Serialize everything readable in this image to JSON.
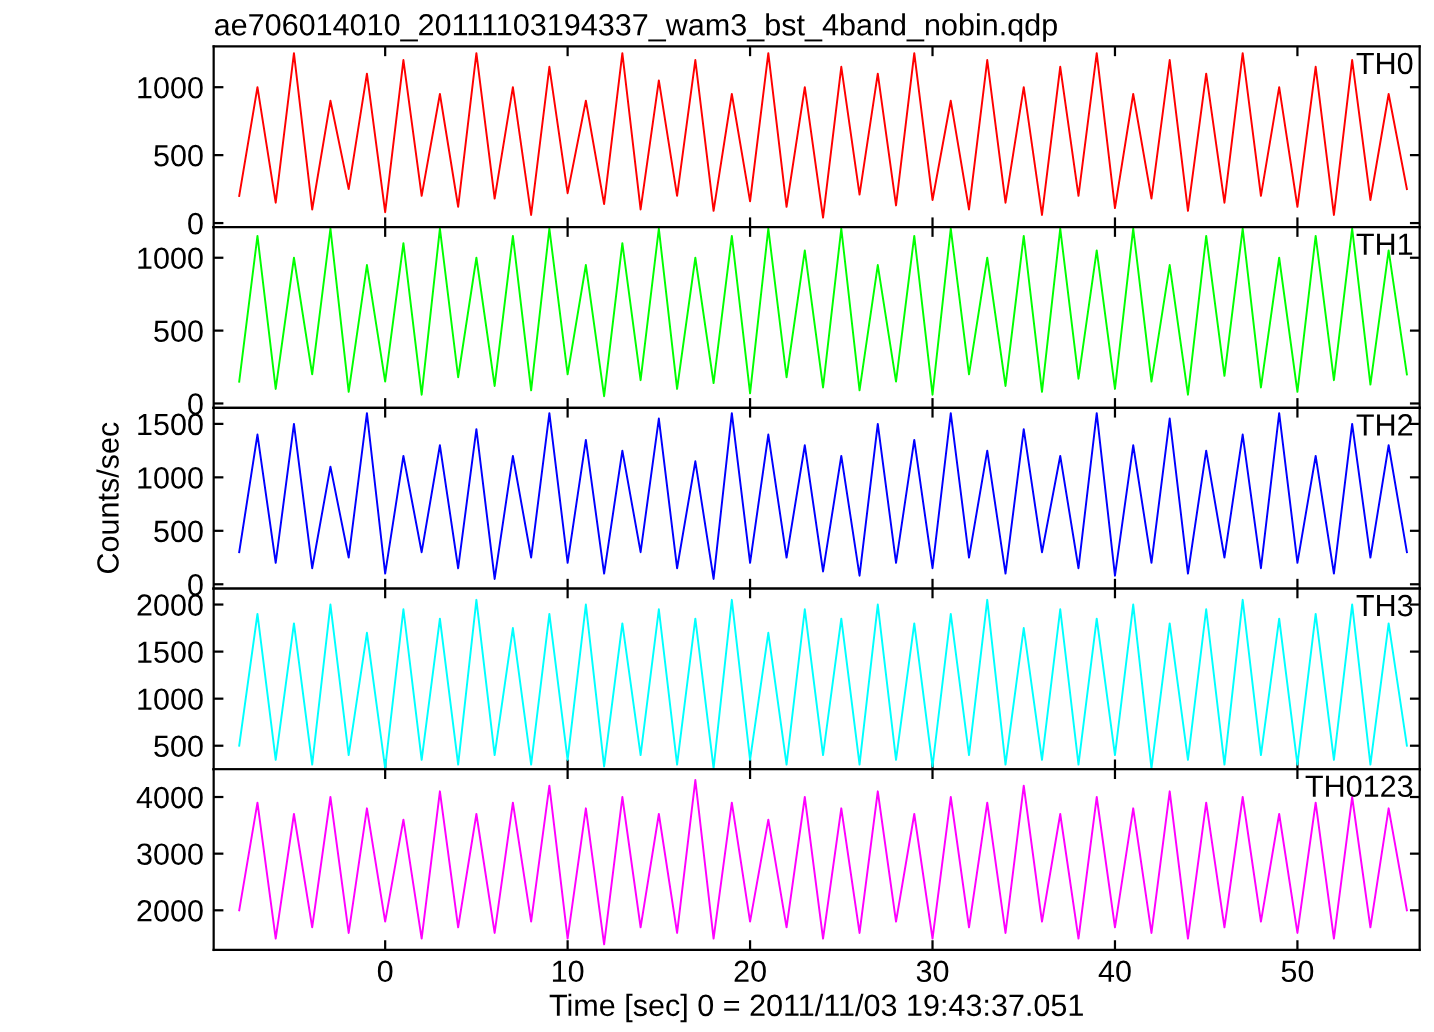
{
  "chart_data": [
    {
      "type": "line",
      "title": "ae706014010_20111103194337_wam3_bst_4band_nobin.qdp",
      "tick_labels": "y",
      "grid": false,
      "xlim": [
        -9.4,
        56.7
      ],
      "xticks": [
        0,
        10,
        20,
        30,
        40,
        50
      ],
      "ylim": [
        -30,
        1300
      ],
      "yticks": [
        0,
        500,
        1000
      ],
      "x": [
        -8,
        -7,
        -6,
        -5,
        -4,
        -3,
        -2,
        -1,
        0,
        1,
        2,
        3,
        4,
        5,
        6,
        7,
        8,
        9,
        10,
        11,
        12,
        13,
        14,
        15,
        16,
        17,
        18,
        19,
        20,
        21,
        22,
        23,
        24,
        25,
        26,
        27,
        28,
        29,
        30,
        31,
        32,
        33,
        34,
        35,
        36,
        37,
        38,
        39,
        40,
        41,
        42,
        43,
        44,
        45,
        46,
        47,
        48,
        49,
        50,
        51,
        52,
        53,
        54,
        55,
        56
      ],
      "series": [
        {
          "name": "TH0",
          "color": "#ff0000",
          "values": [
            200,
            1000,
            150,
            1250,
            100,
            900,
            250,
            1100,
            80,
            1200,
            200,
            950,
            120,
            1250,
            180,
            1000,
            60,
            1150,
            220,
            900,
            140,
            1250,
            100,
            1050,
            200,
            1200,
            90,
            950,
            160,
            1250,
            120,
            1000,
            40,
            1150,
            210,
            1100,
            130,
            1250,
            170,
            900,
            100,
            1200,
            150,
            1000,
            60,
            1150,
            200,
            1250,
            110,
            950,
            180,
            1200,
            90,
            1100,
            150,
            1250,
            200,
            1000,
            120,
            1150,
            60,
            1200,
            170,
            950,
            250
          ]
        }
      ]
    },
    {
      "type": "line",
      "tick_labels": "y",
      "grid": false,
      "xlim": [
        -9.4,
        56.7
      ],
      "xticks": [
        0,
        10,
        20,
        30,
        40,
        50
      ],
      "ylim": [
        -30,
        1210
      ],
      "yticks": [
        0,
        500,
        1000
      ],
      "x": [
        -8,
        -7,
        -6,
        -5,
        -4,
        -3,
        -2,
        -1,
        0,
        1,
        2,
        3,
        4,
        5,
        6,
        7,
        8,
        9,
        10,
        11,
        12,
        13,
        14,
        15,
        16,
        17,
        18,
        19,
        20,
        21,
        22,
        23,
        24,
        25,
        26,
        27,
        28,
        29,
        30,
        31,
        32,
        33,
        34,
        35,
        36,
        37,
        38,
        39,
        40,
        41,
        42,
        43,
        44,
        45,
        46,
        47,
        48,
        49,
        50,
        51,
        52,
        53,
        54,
        55,
        56
      ],
      "series": [
        {
          "name": "TH1",
          "color": "#00ff00",
          "values": [
            150,
            1150,
            100,
            1000,
            200,
            1200,
            80,
            950,
            150,
            1100,
            60,
            1200,
            180,
            1000,
            120,
            1150,
            90,
            1200,
            200,
            950,
            50,
            1100,
            160,
            1200,
            100,
            1000,
            140,
            1150,
            70,
            1200,
            180,
            1050,
            110,
            1200,
            90,
            950,
            150,
            1150,
            60,
            1200,
            200,
            1000,
            120,
            1150,
            80,
            1200,
            170,
            1050,
            100,
            1200,
            150,
            950,
            60,
            1150,
            190,
            1200,
            110,
            1000,
            80,
            1150,
            160,
            1200,
            130,
            1050,
            200
          ]
        }
      ]
    },
    {
      "type": "line",
      "ylabel": "Counts/sec",
      "tick_labels": "y",
      "grid": false,
      "xlim": [
        -9.4,
        56.7
      ],
      "xticks": [
        0,
        10,
        20,
        30,
        40,
        50
      ],
      "ylim": [
        -40,
        1650
      ],
      "yticks": [
        0,
        500,
        1000,
        1500
      ],
      "x": [
        -8,
        -7,
        -6,
        -5,
        -4,
        -3,
        -2,
        -1,
        0,
        1,
        2,
        3,
        4,
        5,
        6,
        7,
        8,
        9,
        10,
        11,
        12,
        13,
        14,
        15,
        16,
        17,
        18,
        19,
        20,
        21,
        22,
        23,
        24,
        25,
        26,
        27,
        28,
        29,
        30,
        31,
        32,
        33,
        34,
        35,
        36,
        37,
        38,
        39,
        40,
        41,
        42,
        43,
        44,
        45,
        46,
        47,
        48,
        49,
        50,
        51,
        52,
        53,
        54,
        55,
        56
      ],
      "series": [
        {
          "name": "TH2",
          "color": "#0000ff",
          "values": [
            300,
            1400,
            200,
            1500,
            150,
            1100,
            250,
            1600,
            100,
            1200,
            300,
            1300,
            150,
            1450,
            50,
            1200,
            250,
            1600,
            200,
            1350,
            100,
            1250,
            300,
            1550,
            150,
            1150,
            50,
            1600,
            200,
            1400,
            250,
            1300,
            120,
            1200,
            80,
            1500,
            200,
            1350,
            150,
            1600,
            250,
            1250,
            100,
            1450,
            300,
            1200,
            150,
            1600,
            80,
            1300,
            200,
            1550,
            100,
            1250,
            250,
            1400,
            150,
            1600,
            200,
            1200,
            100,
            1500,
            250,
            1300,
            300
          ]
        }
      ]
    },
    {
      "type": "line",
      "tick_labels": "y",
      "grid": false,
      "xlim": [
        -9.4,
        56.7
      ],
      "xticks": [
        0,
        10,
        20,
        30,
        40,
        50
      ],
      "ylim": [
        250,
        2170
      ],
      "yticks": [
        500,
        1000,
        1500,
        2000
      ],
      "x": [
        -8,
        -7,
        -6,
        -5,
        -4,
        -3,
        -2,
        -1,
        0,
        1,
        2,
        3,
        4,
        5,
        6,
        7,
        8,
        9,
        10,
        11,
        12,
        13,
        14,
        15,
        16,
        17,
        18,
        19,
        20,
        21,
        22,
        23,
        24,
        25,
        26,
        27,
        28,
        29,
        30,
        31,
        32,
        33,
        34,
        35,
        36,
        37,
        38,
        39,
        40,
        41,
        42,
        43,
        44,
        45,
        46,
        47,
        48,
        49,
        50,
        51,
        52,
        53,
        54,
        55,
        56
      ],
      "series": [
        {
          "name": "TH3",
          "color": "#00ffff",
          "values": [
            500,
            1900,
            350,
            1800,
            300,
            2000,
            400,
            1700,
            260,
            1950,
            350,
            1850,
            300,
            2050,
            400,
            1750,
            300,
            1900,
            350,
            2000,
            280,
            1800,
            400,
            1950,
            300,
            1850,
            260,
            2050,
            350,
            1700,
            300,
            1950,
            400,
            1850,
            300,
            2000,
            350,
            1800,
            280,
            1900,
            400,
            2050,
            300,
            1750,
            350,
            1950,
            300,
            1850,
            400,
            2000,
            260,
            1800,
            350,
            1950,
            300,
            2050,
            400,
            1850,
            300,
            1900,
            350,
            2000,
            300,
            1800,
            500
          ]
        }
      ]
    },
    {
      "type": "line",
      "xlabel": "Time [sec] 0 = 2011/11/03 19:43:37.051",
      "grid": false,
      "xlim": [
        -9.4,
        56.7
      ],
      "xticks": [
        0,
        10,
        20,
        30,
        40,
        50
      ],
      "ylim": [
        1300,
        4490
      ],
      "yticks": [
        2000,
        3000,
        4000
      ],
      "x": [
        -8,
        -7,
        -6,
        -5,
        -4,
        -3,
        -2,
        -1,
        0,
        1,
        2,
        3,
        4,
        5,
        6,
        7,
        8,
        9,
        10,
        11,
        12,
        13,
        14,
        15,
        16,
        17,
        18,
        19,
        20,
        21,
        22,
        23,
        24,
        25,
        26,
        27,
        28,
        29,
        30,
        31,
        32,
        33,
        34,
        35,
        36,
        37,
        38,
        39,
        40,
        41,
        42,
        43,
        44,
        45,
        46,
        47,
        48,
        49,
        50,
        51,
        52,
        53,
        54,
        55,
        56
      ],
      "series": [
        {
          "name": "TH0123",
          "color": "#ff00ff",
          "values": [
            2000,
            3900,
            1500,
            3700,
            1700,
            4000,
            1600,
            3800,
            1800,
            3600,
            1500,
            4100,
            1700,
            3700,
            1600,
            3900,
            1800,
            4200,
            1500,
            3800,
            1400,
            4000,
            1700,
            3700,
            1600,
            4300,
            1500,
            3900,
            1800,
            3600,
            1700,
            4000,
            1500,
            3800,
            1600,
            4100,
            1800,
            3700,
            1500,
            4000,
            1700,
            3900,
            1600,
            4200,
            1800,
            3700,
            1500,
            4000,
            1700,
            3800,
            1600,
            4100,
            1500,
            3900,
            1700,
            4000,
            1800,
            3700,
            1600,
            3900,
            1500,
            4000,
            1700,
            3800,
            2000
          ]
        }
      ]
    }
  ]
}
